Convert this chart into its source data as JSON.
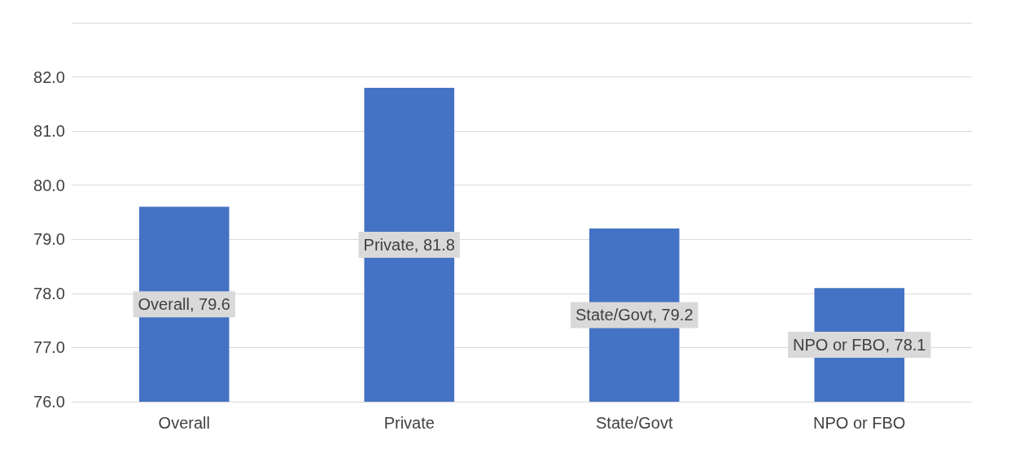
{
  "chart_data": {
    "type": "bar",
    "categories": [
      "Overall",
      "Private",
      "State/Govt",
      "NPO or FBO"
    ],
    "values": [
      79.6,
      81.8,
      79.2,
      78.1
    ],
    "value_labels": [
      "Overall, 79.6",
      "Private, 81.8",
      "State/Govt, 79.2",
      "NPO or FBO, 78.1"
    ],
    "color": "#4472c4",
    "ylim": [
      76,
      83
    ],
    "yticks": [
      {
        "value": 76,
        "label": "76.0"
      },
      {
        "value": 77,
        "label": "77.0"
      },
      {
        "value": 78,
        "label": "78.0"
      },
      {
        "value": 79,
        "label": "79.0"
      },
      {
        "value": 80,
        "label": "80.0"
      },
      {
        "value": 81,
        "label": "81.0"
      },
      {
        "value": 82,
        "label": "82.0"
      },
      {
        "value": 83,
        "label": null
      }
    ],
    "grid": true
  }
}
